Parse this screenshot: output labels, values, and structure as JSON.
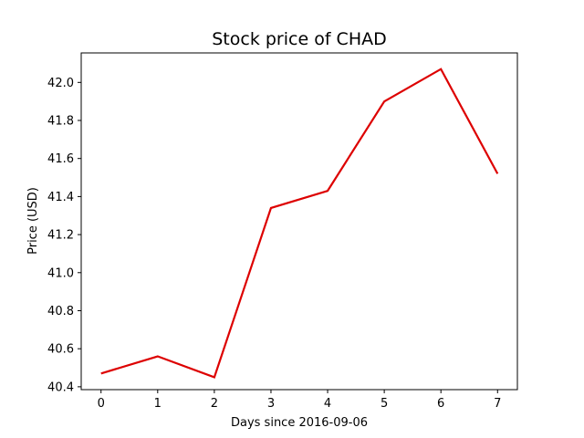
{
  "chart_data": {
    "type": "line",
    "title": "Stock price of CHAD",
    "xlabel": "Days since 2016-09-06",
    "ylabel": "Price (USD)",
    "x": [
      0,
      1,
      2,
      3,
      4,
      5,
      6,
      7
    ],
    "series": [
      {
        "values": [
          40.47,
          40.56,
          40.45,
          41.34,
          41.43,
          41.9,
          42.07,
          41.52
        ],
        "color": "#dd0000"
      }
    ],
    "xlim": [
      -0.35,
      7.35
    ],
    "ylim": [
      40.385,
      42.155
    ],
    "xticks": [
      "0",
      "1",
      "2",
      "3",
      "4",
      "5",
      "6",
      "7"
    ],
    "yticks": [
      "40.4",
      "40.6",
      "40.8",
      "41.0",
      "41.2",
      "41.4",
      "41.6",
      "41.8",
      "42.0"
    ],
    "grid": false,
    "legend": "none"
  }
}
